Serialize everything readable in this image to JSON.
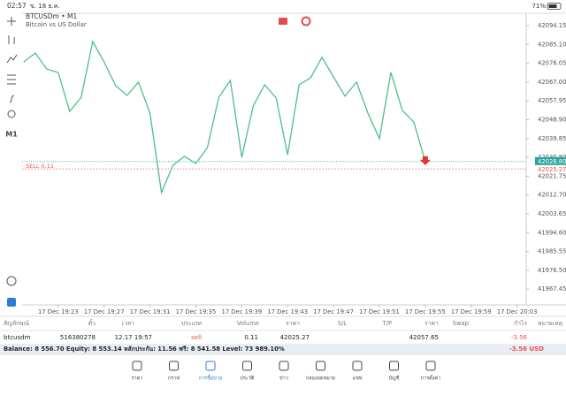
{
  "status_bar": {
    "time": "02:57",
    "date": "ข. 18 ธ.ค.",
    "battery": "71%"
  },
  "toolbar": {
    "timeframe": "M1"
  },
  "chart_data": {
    "type": "line",
    "title": "BTCUSDm • M1",
    "subtitle": "Bitcoin vs US Dollar",
    "color": "#4cbf8a",
    "x": [
      20,
      21,
      22,
      23,
      24,
      25,
      26,
      27,
      28,
      29,
      30,
      31,
      32,
      33,
      34,
      35,
      36,
      37,
      38,
      39,
      40,
      41,
      42,
      43,
      44,
      45,
      46,
      47,
      48,
      49,
      50,
      51,
      52,
      53,
      54,
      55
    ],
    "values": [
      42076.7,
      42081.0,
      42073.3,
      42071.6,
      42052.9,
      42059.7,
      42086.5,
      42076.7,
      42065.3,
      42060.6,
      42067.0,
      42052.1,
      42013.9,
      42027.0,
      42031.3,
      42027.9,
      42035.5,
      42059.7,
      42067.8,
      42030.8,
      42055.5,
      42065.7,
      42059.3,
      42032.1,
      42065.7,
      42069.1,
      42078.9,
      42069.5,
      42060.2,
      42067.0,
      42052.1,
      42039.8,
      42071.6,
      42053.4,
      42047.8,
      42028.8
    ],
    "xlim": [
      19.85,
      63.8
    ],
    "ylim": [
      41959.9,
      42100.1
    ],
    "xticks": [
      {
        "value": 23,
        "label": "17 Dec 19:23"
      },
      {
        "value": 27,
        "label": "17 Dec 19:27"
      },
      {
        "value": 31,
        "label": "17 Dec 19:31"
      },
      {
        "value": 35,
        "label": "17 Dec 19:35"
      },
      {
        "value": 39,
        "label": "17 Dec 19:39"
      },
      {
        "value": 43,
        "label": "17 Dec 19:43"
      },
      {
        "value": 47,
        "label": "17 Dec 19:47"
      },
      {
        "value": 51,
        "label": "17 Dec 19:51"
      },
      {
        "value": 55,
        "label": "17 Dec 19:55"
      },
      {
        "value": 59,
        "label": "17 Dec 19:59"
      },
      {
        "value": 63,
        "label": "17 Dec 20:03"
      }
    ],
    "yticks": [
      42094.15,
      {
        "value": 42085.1,
        "label": "42085.10"
      },
      42076.05,
      {
        "value": 42067,
        "label": "42067.00"
      },
      42057.95,
      {
        "value": 42048.9,
        "label": "42048.90"
      },
      42039.85,
      {
        "value": 42030.8,
        "label": "42030.80"
      },
      42021.75,
      {
        "value": 42012.7,
        "label": "42012.70"
      },
      42003.65,
      {
        "value": 41994.6,
        "label": "41994.60"
      },
      41985.55,
      {
        "value": 41976.5,
        "label": "41976.50"
      },
      41967.45
    ],
    "price_line": {
      "value": 42028.8,
      "label": "42028.80",
      "color": "#26a69a"
    },
    "order_line": {
      "label": "SELL 0.11",
      "price": 42025.27,
      "color": "#e8534a"
    }
  },
  "positions": {
    "columns": [
      "สัญลักษณ์",
      "ตั๋ว",
      "เวลา",
      "ประเภท",
      "Volume",
      "ราคา",
      "S/L",
      "T/P",
      "ราคา",
      "Swap",
      "กำไร",
      "หมายเหตุ"
    ],
    "row": {
      "symbol": "btcusdm",
      "ticket": "516380278",
      "time": "12.17 19:57",
      "type": "sell",
      "volume": "0.11",
      "price": "42025.27",
      "current_price": "42057.65",
      "profit": "-3.56"
    }
  },
  "balance": {
    "summary": "Balance: 8 556.70 Equity: 8 553.14 หลักประกัน: 11.56 ฟรี: 8 541.58 Level: 73 989.10%",
    "total": "-3.56  USD"
  },
  "tabs": [
    "ราคา",
    "กราฟ",
    "การซื้อขาย",
    "ประวัติ",
    "ข่าว",
    "กล่องจดหมาย",
    "แชท",
    "บัญชี",
    "การตั้งค่า"
  ]
}
